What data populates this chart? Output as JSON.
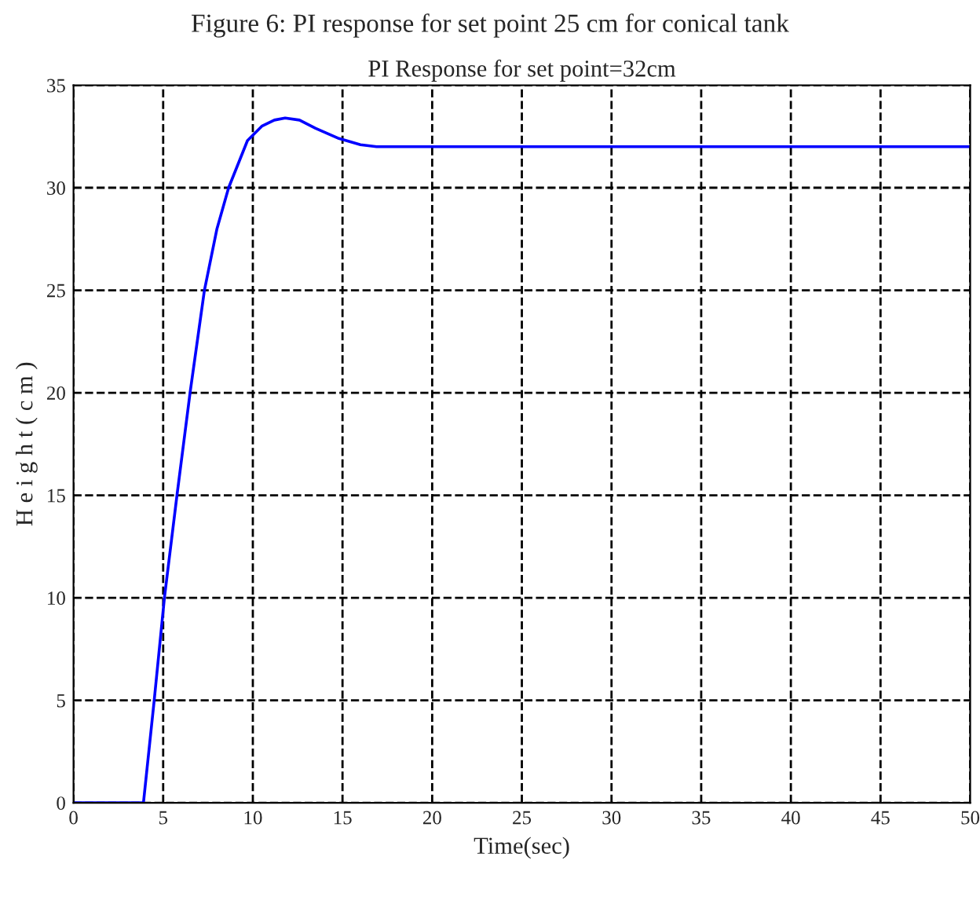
{
  "chart_data": {
    "type": "line",
    "title": "PI Response for set point=32cm",
    "xlabel": "Time(sec)",
    "ylabel": "H e i g h t ( c m )",
    "annotations": [
      "Figure 6: PI response for set point 25 cm for conical tank"
    ],
    "series": [
      {
        "color": "#0000ff",
        "x": [
          0,
          3.9,
          4.5,
          5.07,
          5.77,
          6.5,
          7.3,
          8.0,
          8.65,
          9.7,
          10.5,
          11.2,
          11.8,
          12.6,
          13.5,
          14.8,
          16.0,
          16.9,
          20,
          30,
          40,
          50
        ],
        "values": [
          0,
          0,
          5,
          10,
          15,
          20,
          25,
          28,
          30,
          32.3,
          33.0,
          33.3,
          33.4,
          33.3,
          32.9,
          32.4,
          32.1,
          32,
          32,
          32,
          32,
          32
        ]
      }
    ],
    "xlim": [
      0,
      50
    ],
    "xticks": [
      0,
      5,
      10,
      15,
      20,
      25,
      30,
      35,
      40,
      45,
      50
    ],
    "ylim": [
      0,
      35
    ],
    "yticks": [
      0,
      5,
      10,
      15,
      20,
      25,
      30,
      35
    ],
    "grid": true,
    "line_style": "solid",
    "marker": "none"
  }
}
